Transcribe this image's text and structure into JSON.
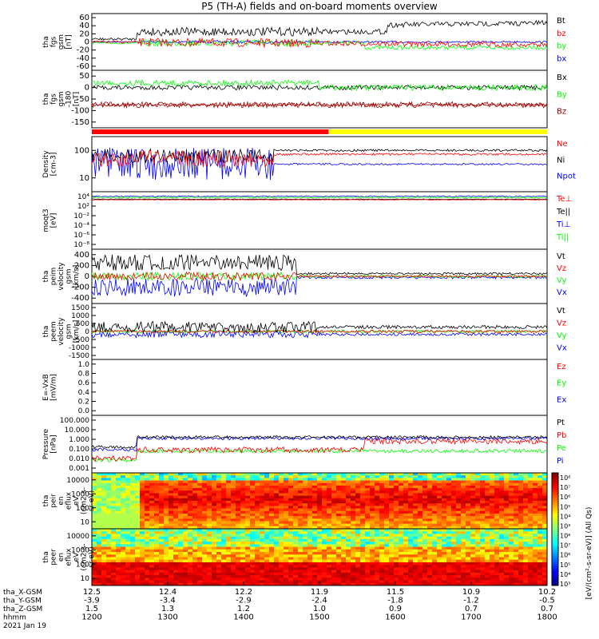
{
  "title": "P5 (TH-A) fields and on-board moments overview",
  "colors": {
    "black": "#000000",
    "red": "#ff0000",
    "green": "#00ff00",
    "blue": "#0000ff",
    "darkred": "#a00000",
    "yellow": "#ffff00"
  },
  "chart_data": [
    {
      "type": "line",
      "id": "fgs_mag",
      "ylabel_lines": [
        "tha",
        "fgs",
        "gsm",
        "[nT]"
      ],
      "yticks": [
        60,
        40,
        20,
        0,
        -20,
        -40,
        -60
      ],
      "series": [
        {
          "name": "Bt",
          "color": "black"
        },
        {
          "name": "bz",
          "color": "red"
        },
        {
          "name": "by",
          "color": "green"
        },
        {
          "name": "bx",
          "color": "blue"
        }
      ]
    },
    {
      "type": "line",
      "id": "fgs_rot",
      "ylabel_lines": [
        "tha",
        "fgs",
        "gsm",
        "-180",
        "[nT]"
      ],
      "yticks": [
        50,
        0,
        -50,
        -100,
        -150
      ],
      "series": [
        {
          "name": "Bx",
          "color": "black"
        },
        {
          "name": "By",
          "color": "green"
        },
        {
          "name": "Bz",
          "color": "darkred"
        }
      ]
    },
    {
      "type": "bar",
      "id": "mode_bar",
      "segments": [
        {
          "color": "red",
          "start": 0.0,
          "end": 0.52
        },
        {
          "color": "yellow",
          "start": 0.52,
          "end": 1.0
        }
      ]
    },
    {
      "type": "line",
      "id": "density",
      "ylabel_lines": [
        "Density",
        "[cm-3]"
      ],
      "yticks": [
        "100",
        "10"
      ],
      "series": [
        {
          "name": "Ne",
          "color": "red"
        },
        {
          "name": "Ni",
          "color": "black"
        },
        {
          "name": "Npot",
          "color": "blue"
        }
      ]
    },
    {
      "type": "line",
      "id": "temperature",
      "ylabel_lines": [
        "moqt3",
        "[eV]"
      ],
      "yticks": [
        "10⁴",
        "10²",
        "10⁻²",
        "10⁻⁴",
        "10⁻⁶",
        "10⁻⁸"
      ],
      "series": [
        {
          "name": "Te⊥",
          "color": "red"
        },
        {
          "name": "Te||",
          "color": "black"
        },
        {
          "name": "Ti⊥",
          "color": "blue"
        },
        {
          "name": "Ti||",
          "color": "green"
        }
      ]
    },
    {
      "type": "line",
      "id": "peim_velocity",
      "ylabel_lines": [
        "tha",
        "peim",
        "velocity",
        "gsm",
        "[km/s]"
      ],
      "yticks": [
        400,
        200,
        0,
        -200,
        -400
      ],
      "series": [
        {
          "name": "Vt",
          "color": "black"
        },
        {
          "name": "Vz",
          "color": "red"
        },
        {
          "name": "Vy",
          "color": "green"
        },
        {
          "name": "Vx",
          "color": "blue"
        }
      ]
    },
    {
      "type": "line",
      "id": "peem_velocity",
      "ylabel_lines": [
        "tha",
        "peem",
        "velocity",
        "gsm",
        "[km/s]"
      ],
      "yticks": [
        1500,
        1000,
        500,
        0,
        -500,
        -1000,
        -1500
      ],
      "series": [
        {
          "name": "Vt",
          "color": "black"
        },
        {
          "name": "Vz",
          "color": "red"
        },
        {
          "name": "Vy",
          "color": "green"
        },
        {
          "name": "Vx",
          "color": "blue"
        }
      ]
    },
    {
      "type": "line",
      "id": "efield",
      "ylabel_lines": [
        "E=-VxB",
        "[mV/m]"
      ],
      "yticks": [
        "1.0",
        "0.8",
        "0.6",
        "0.4",
        "0.2",
        "0.0"
      ],
      "series": [
        {
          "name": "Ez",
          "color": "red"
        },
        {
          "name": "Ey",
          "color": "green"
        },
        {
          "name": "Ex",
          "color": "blue"
        }
      ]
    },
    {
      "type": "line",
      "id": "pressure",
      "ylabel_lines": [
        "Pressure",
        "[nPa]"
      ],
      "yticks": [
        "100.000",
        "10.000",
        "1.000",
        "0.100",
        "0.010",
        "0.001"
      ],
      "series": [
        {
          "name": "Pt",
          "color": "black"
        },
        {
          "name": "Pb",
          "color": "red"
        },
        {
          "name": "Pe",
          "color": "green"
        },
        {
          "name": "Pi",
          "color": "blue"
        }
      ]
    },
    {
      "type": "heatmap",
      "id": "peir_eflux",
      "ylabel_lines": [
        "tha",
        "peir",
        "en",
        "eflux",
        "eV",
        "(cm2-s-",
        "sr-eV)"
      ],
      "yticks": [
        "10000",
        "1000",
        "100",
        "10"
      ]
    },
    {
      "type": "heatmap",
      "id": "peer_eflux",
      "ylabel_lines": [
        "tha",
        "peer",
        "en",
        "eflux",
        "eV",
        "(cm2-s-",
        "sr-eV)"
      ],
      "yticks": [
        "10000",
        "1000",
        "100",
        "10"
      ]
    }
  ],
  "colorbar": {
    "ticks": [
      "10⁸",
      "10⁷",
      "10⁶",
      "10⁵",
      "10⁴",
      "10³",
      "10⁸",
      "10⁷",
      "10⁶",
      "10⁵",
      "10⁴",
      "10³"
    ],
    "label": "[eV/(cm²-s-sr-eV)] (All Qs)"
  },
  "xaxis": {
    "rows": [
      {
        "label": "tha_X-GSM",
        "values": [
          "12.5",
          "12.4",
          "12.2",
          "11.9",
          "11.5",
          "10.9",
          "10.2"
        ]
      },
      {
        "label": "tha_Y-GSM",
        "values": [
          "-3.9",
          "-3.4",
          "-2.9",
          "-2.4",
          "-1.8",
          "-1.2",
          "-0.5"
        ]
      },
      {
        "label": "tha_Z-GSM",
        "values": [
          "1.5",
          "1.3",
          "1.2",
          "1.0",
          "0.9",
          "0.7",
          "0.7"
        ]
      },
      {
        "label": "hhmm",
        "values": [
          "1200",
          "1300",
          "1400",
          "1500",
          "1600",
          "1700",
          "1800"
        ]
      }
    ],
    "date": "2021 Jan 19"
  }
}
